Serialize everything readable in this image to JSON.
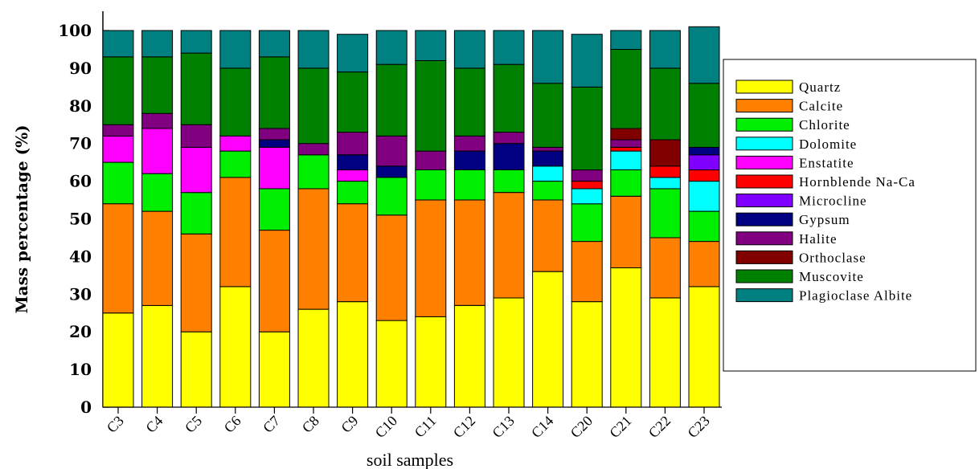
{
  "chart_data": {
    "type": "bar",
    "stacked": true,
    "xlabel": "soil samples",
    "ylabel": "Mass percentage (%)",
    "ylim": [
      0,
      100
    ],
    "yticks": [
      0,
      10,
      20,
      30,
      40,
      50,
      60,
      70,
      80,
      90,
      100
    ],
    "legend_position": "right",
    "categories": [
      "C3",
      "C4",
      "C5",
      "C6",
      "C7",
      "C8",
      "C9",
      "C10",
      "C11",
      "C12",
      "C13",
      "C14",
      "C20",
      "C21",
      "C22",
      "C23"
    ],
    "series": [
      {
        "name": "Quartz",
        "color": "#ffff00",
        "values": [
          25,
          27,
          20,
          32,
          20,
          26,
          28,
          23,
          24,
          27,
          29,
          36,
          28,
          37,
          29,
          32
        ]
      },
      {
        "name": "Calcite",
        "color": "#ff8000",
        "values": [
          29,
          25,
          26,
          29,
          27,
          32,
          26,
          28,
          31,
          28,
          28,
          19,
          16,
          19,
          16,
          12
        ]
      },
      {
        "name": "Chlorite",
        "color": "#00ee00",
        "values": [
          11,
          10,
          11,
          7,
          11,
          9,
          6,
          10,
          8,
          8,
          6,
          5,
          10,
          7,
          13,
          8
        ]
      },
      {
        "name": "Dolomite",
        "color": "#00ffff",
        "values": [
          0,
          0,
          0,
          0,
          0,
          0,
          0,
          0,
          0,
          0,
          0,
          4,
          4,
          5,
          3,
          8
        ]
      },
      {
        "name": "Enstatite",
        "color": "#ff00ff",
        "values": [
          7,
          12,
          12,
          4,
          11,
          0,
          3,
          0,
          0,
          0,
          0,
          0,
          0,
          0,
          0,
          0
        ]
      },
      {
        "name": "Hornblende Na-Ca",
        "color": "#ff0000",
        "values": [
          0,
          0,
          0,
          0,
          0,
          0,
          0,
          0,
          0,
          0,
          0,
          0,
          2,
          1,
          3,
          3
        ]
      },
      {
        "name": "Microcline",
        "color": "#8000ff",
        "values": [
          0,
          0,
          0,
          0,
          0,
          0,
          0,
          0,
          0,
          0,
          0,
          0,
          0,
          0,
          0,
          4
        ]
      },
      {
        "name": "Gypsum",
        "color": "#000080",
        "values": [
          0,
          0,
          0,
          0,
          2,
          0,
          4,
          3,
          0,
          5,
          7,
          4,
          0,
          0,
          0,
          2
        ]
      },
      {
        "name": "Halite",
        "color": "#800080",
        "values": [
          3,
          4,
          6,
          0,
          3,
          3,
          6,
          8,
          5,
          4,
          3,
          1,
          3,
          2,
          0,
          0
        ]
      },
      {
        "name": "Orthoclase",
        "color": "#800000",
        "values": [
          0,
          0,
          0,
          0,
          0,
          0,
          0,
          0,
          0,
          0,
          0,
          0,
          0,
          3,
          7,
          0
        ]
      },
      {
        "name": "Muscovite",
        "color": "#008000",
        "values": [
          18,
          15,
          19,
          18,
          19,
          20,
          16,
          19,
          24,
          18,
          18,
          17,
          22,
          21,
          19,
          17
        ]
      },
      {
        "name": "Plagioclase Albite",
        "color": "#008080",
        "values": [
          7,
          7,
          6,
          10,
          7,
          10,
          10,
          9,
          8,
          10,
          9,
          14,
          14,
          5,
          10,
          15
        ]
      }
    ]
  }
}
